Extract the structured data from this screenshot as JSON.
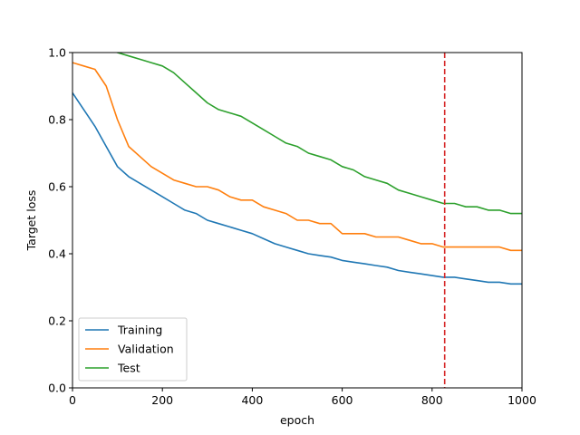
{
  "chart_data": {
    "type": "line",
    "title": "",
    "xlabel": "epoch",
    "ylabel": "Target loss",
    "xlim": [
      0,
      1000
    ],
    "ylim": [
      0.0,
      1.0
    ],
    "xticks": [
      0,
      200,
      400,
      600,
      800,
      1000
    ],
    "xtick_labels": [
      "0",
      "200",
      "400",
      "600",
      "800",
      "1000"
    ],
    "yticks": [
      0.0,
      0.2,
      0.4,
      0.6,
      0.8,
      1.0
    ],
    "ytick_labels": [
      "0.0",
      "0.2",
      "0.4",
      "0.6",
      "0.8",
      "1.0"
    ],
    "grid": false,
    "legend_position": "lower-left",
    "vline": {
      "x": 828,
      "color": "#d62728",
      "style": "dashed"
    },
    "series": [
      {
        "name": "Training",
        "color": "#1f77b4",
        "x": [
          0,
          25,
          50,
          75,
          100,
          125,
          150,
          175,
          200,
          225,
          250,
          275,
          300,
          325,
          350,
          375,
          400,
          425,
          450,
          475,
          500,
          525,
          550,
          575,
          600,
          625,
          650,
          675,
          700,
          725,
          750,
          775,
          800,
          825,
          850,
          875,
          900,
          925,
          950,
          975,
          1000
        ],
        "values": [
          0.88,
          0.83,
          0.78,
          0.72,
          0.66,
          0.63,
          0.61,
          0.59,
          0.57,
          0.55,
          0.53,
          0.52,
          0.5,
          0.49,
          0.48,
          0.47,
          0.46,
          0.445,
          0.43,
          0.42,
          0.41,
          0.4,
          0.395,
          0.39,
          0.38,
          0.375,
          0.37,
          0.365,
          0.36,
          0.35,
          0.345,
          0.34,
          0.335,
          0.33,
          0.33,
          0.325,
          0.32,
          0.315,
          0.315,
          0.31,
          0.31
        ]
      },
      {
        "name": "Validation",
        "color": "#ff7f0e",
        "x": [
          0,
          25,
          50,
          75,
          100,
          125,
          150,
          175,
          200,
          225,
          250,
          275,
          300,
          325,
          350,
          375,
          400,
          425,
          450,
          475,
          500,
          525,
          550,
          575,
          600,
          625,
          650,
          675,
          700,
          725,
          750,
          775,
          800,
          825,
          850,
          875,
          900,
          925,
          950,
          975,
          1000
        ],
        "values": [
          0.97,
          0.96,
          0.95,
          0.9,
          0.8,
          0.72,
          0.69,
          0.66,
          0.64,
          0.62,
          0.61,
          0.6,
          0.6,
          0.59,
          0.57,
          0.56,
          0.56,
          0.54,
          0.53,
          0.52,
          0.5,
          0.5,
          0.49,
          0.49,
          0.46,
          0.46,
          0.46,
          0.45,
          0.45,
          0.45,
          0.44,
          0.43,
          0.43,
          0.42,
          0.42,
          0.42,
          0.42,
          0.42,
          0.42,
          0.41,
          0.41
        ]
      },
      {
        "name": "Test",
        "color": "#2ca02c",
        "x": [
          0,
          25,
          50,
          75,
          100,
          125,
          150,
          175,
          200,
          225,
          250,
          275,
          300,
          325,
          350,
          375,
          400,
          425,
          450,
          475,
          500,
          525,
          550,
          575,
          600,
          625,
          650,
          675,
          700,
          725,
          750,
          775,
          800,
          825,
          850,
          875,
          900,
          925,
          950,
          975,
          1000
        ],
        "values": [
          1.05,
          1.03,
          1.02,
          1.01,
          1.0,
          0.99,
          0.98,
          0.97,
          0.96,
          0.94,
          0.91,
          0.88,
          0.85,
          0.83,
          0.82,
          0.81,
          0.79,
          0.77,
          0.75,
          0.73,
          0.72,
          0.7,
          0.69,
          0.68,
          0.66,
          0.65,
          0.63,
          0.62,
          0.61,
          0.59,
          0.58,
          0.57,
          0.56,
          0.55,
          0.55,
          0.54,
          0.54,
          0.53,
          0.53,
          0.52,
          0.52
        ]
      }
    ]
  }
}
